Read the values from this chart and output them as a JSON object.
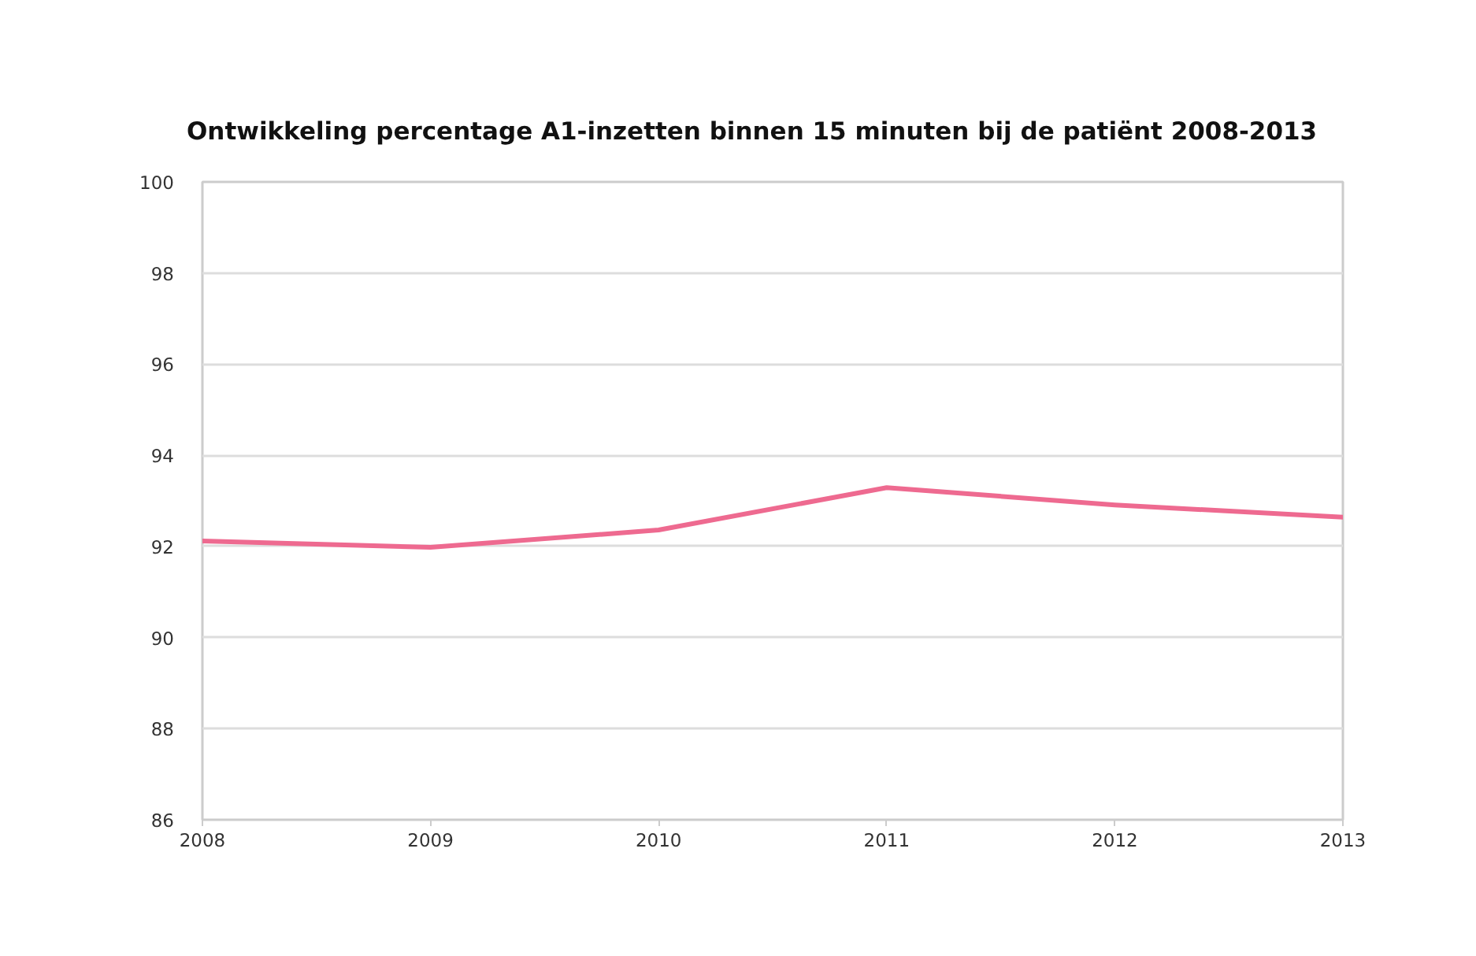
{
  "chart_data": {
    "type": "line",
    "title": "Ontwikkeling percentage A1-inzetten binnen 15 minuten bij de patiënt 2008-2013",
    "x": [
      2008,
      2009,
      2010,
      2011,
      2012,
      2013
    ],
    "series": [
      {
        "color": "#ee6a90",
        "values": [
          92.12,
          91.98,
          92.36,
          93.29,
          92.91,
          92.64
        ]
      }
    ],
    "xlim": [
      2008,
      2013
    ],
    "xticks": [
      2008,
      2009,
      2010,
      2011,
      2012,
      2013
    ],
    "ylim": [
      86,
      100
    ],
    "yticks": [
      86,
      88,
      90,
      92,
      94,
      96,
      98,
      100
    ],
    "grid": "y",
    "line_style": "solid"
  }
}
